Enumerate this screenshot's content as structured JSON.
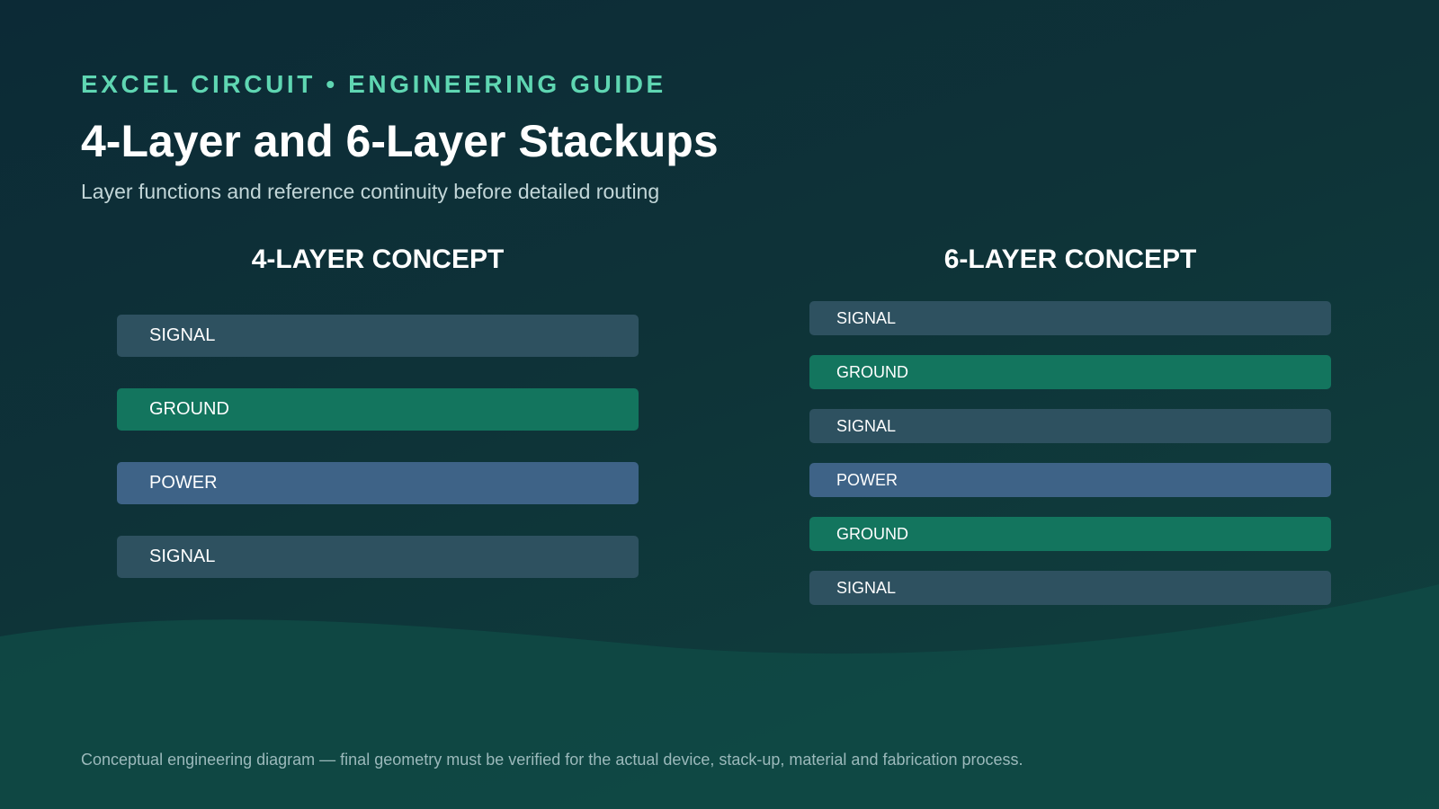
{
  "header": {
    "eyebrow": "EXCEL CIRCUIT • ENGINEERING GUIDE",
    "title": "4-Layer and 6-Layer Stackups",
    "subtitle": "Layer functions and reference continuity before detailed routing"
  },
  "colors": {
    "signal": "#2e5160",
    "ground": "#13755e",
    "power": "#3e6387",
    "accent": "#5fd6b2"
  },
  "stack_4": {
    "heading": "4-LAYER CONCEPT",
    "layers": [
      {
        "label": "SIGNAL",
        "type": "signal"
      },
      {
        "label": "GROUND",
        "type": "ground"
      },
      {
        "label": "POWER",
        "type": "power"
      },
      {
        "label": "SIGNAL",
        "type": "signal"
      }
    ]
  },
  "stack_6": {
    "heading": "6-LAYER CONCEPT",
    "layers": [
      {
        "label": "SIGNAL",
        "type": "signal"
      },
      {
        "label": "GROUND",
        "type": "ground"
      },
      {
        "label": "SIGNAL",
        "type": "signal"
      },
      {
        "label": "POWER",
        "type": "power"
      },
      {
        "label": "GROUND",
        "type": "ground"
      },
      {
        "label": "SIGNAL",
        "type": "signal"
      }
    ]
  },
  "footnote": "Conceptual engineering diagram — final geometry must be verified for the actual device, stack-up, material and fabrication process."
}
